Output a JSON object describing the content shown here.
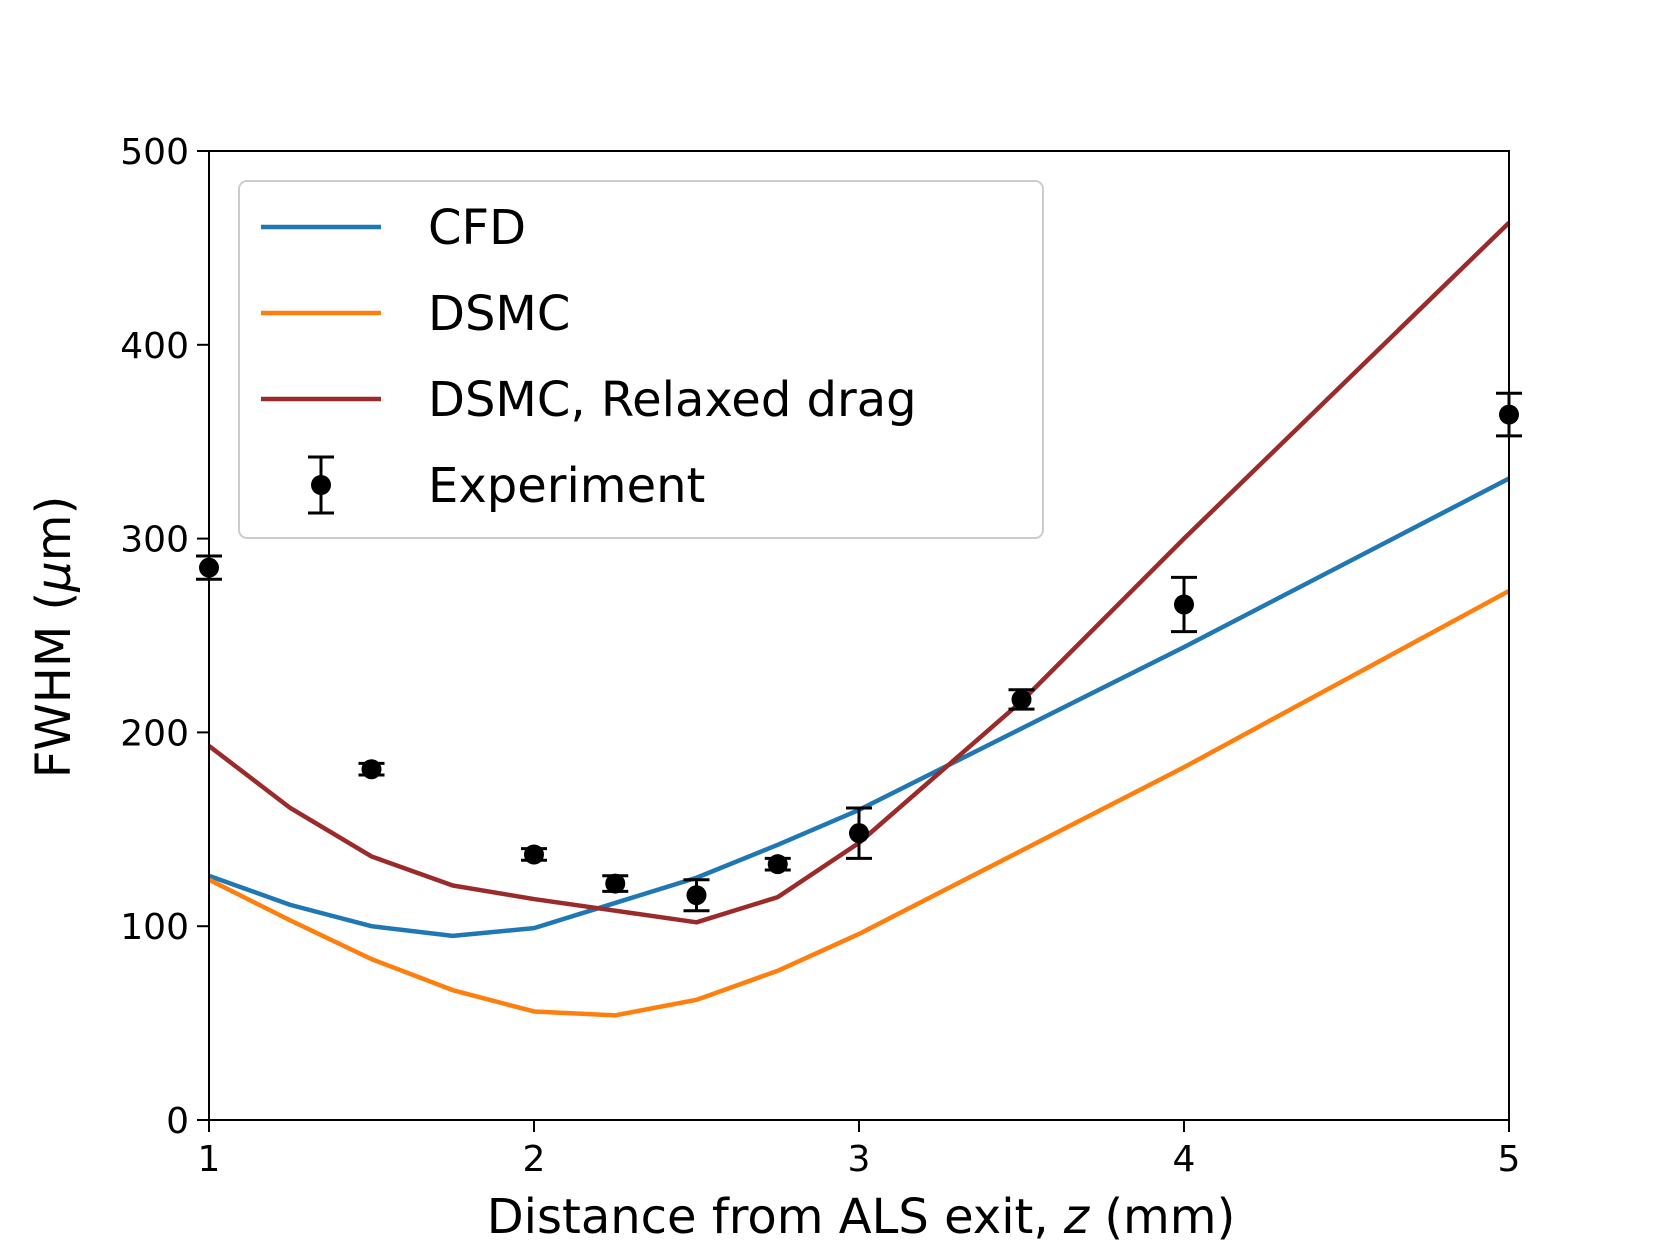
{
  "chart_data": {
    "type": "line",
    "title": "",
    "xlabel": {
      "prefix": "Distance from ALS exit, ",
      "var": "z",
      "suffix": " (mm)"
    },
    "ylabel": {
      "prefix": "FWHM (",
      "var": "μ",
      "suffix": "m)"
    },
    "xlim": [
      1,
      5
    ],
    "ylim": [
      0,
      500
    ],
    "x_ticks": [
      1,
      2,
      3,
      4,
      5
    ],
    "y_ticks": [
      0,
      100,
      200,
      300,
      400,
      500
    ],
    "grid": false,
    "legend_position": "upper-left",
    "series": [
      {
        "name": "CFD",
        "color": "#1f77b4",
        "kind": "line",
        "x": [
          1,
          1.25,
          1.5,
          1.75,
          2,
          2.25,
          2.5,
          2.75,
          3,
          3.5,
          4,
          5
        ],
        "y": [
          126,
          111,
          100,
          95,
          99,
          112,
          125,
          142,
          160,
          202,
          244,
          331
        ]
      },
      {
        "name": "DSMC",
        "color": "#ff7f0e",
        "kind": "line",
        "x": [
          1,
          1.25,
          1.5,
          1.75,
          2,
          2.25,
          2.5,
          2.75,
          3,
          3.5,
          4,
          5
        ],
        "y": [
          124,
          103,
          83,
          67,
          56,
          54,
          62,
          77,
          96,
          139,
          182,
          273
        ]
      },
      {
        "name": "DSMC, Relaxed drag",
        "color": "#9b2a2a",
        "kind": "line",
        "x": [
          1,
          1.25,
          1.5,
          1.75,
          2,
          2.25,
          2.5,
          2.75,
          3,
          3.5,
          4,
          5
        ],
        "y": [
          193,
          161,
          136,
          121,
          114,
          108,
          102,
          115,
          143,
          216,
          300,
          463
        ]
      },
      {
        "name": "Experiment",
        "color": "#000000",
        "kind": "errorbar",
        "x": [
          1,
          1.5,
          2,
          2.25,
          2.5,
          2.75,
          3,
          3.5,
          4,
          5
        ],
        "y": [
          285,
          181,
          137,
          122,
          116,
          132,
          148,
          217,
          266,
          364
        ],
        "yerr": [
          6,
          3,
          3,
          4,
          8,
          3,
          13,
          5,
          14,
          11
        ]
      }
    ]
  }
}
